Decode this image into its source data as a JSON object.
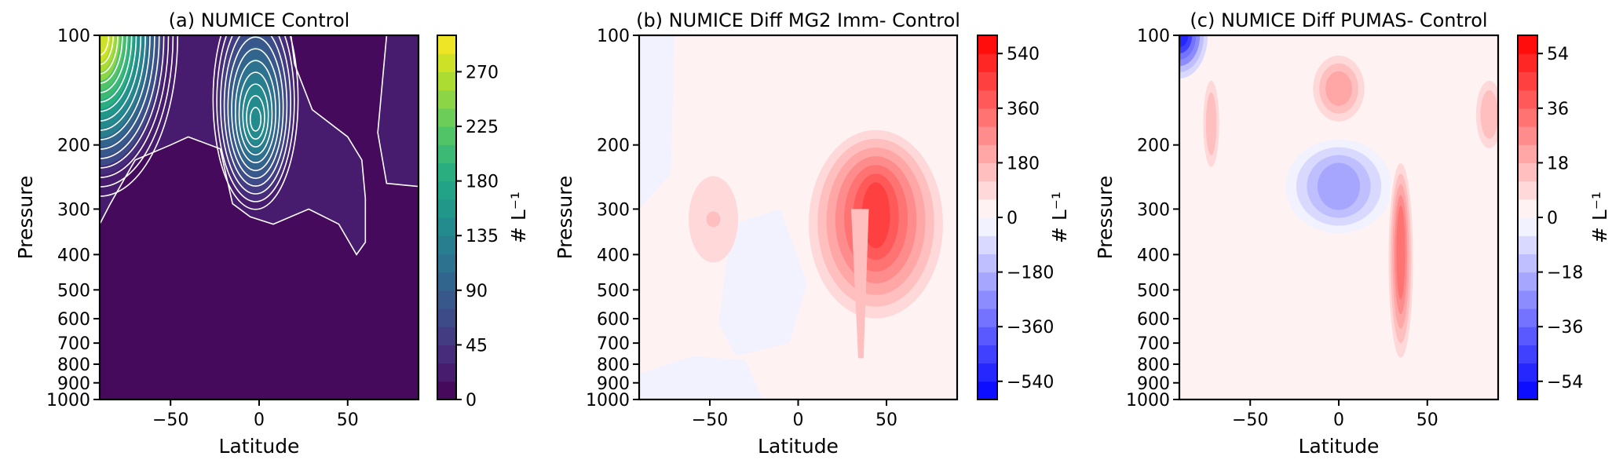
{
  "chart_data": [
    {
      "type": "heatmap",
      "title": "(a) NUMICE Control",
      "xlabel": "Latitude",
      "ylabel": "Pressure",
      "x_ticks": [
        "−50",
        "0",
        "50"
      ],
      "x_tick_values": [
        -50,
        0,
        50
      ],
      "xlim": [
        -90,
        90
      ],
      "y_ticks": [
        "100",
        "200",
        "300",
        "400",
        "500",
        "600",
        "700",
        "800",
        "900",
        "1000"
      ],
      "y_tick_values": [
        100,
        200,
        300,
        400,
        500,
        600,
        700,
        800,
        900,
        1000
      ],
      "ylim": [
        1000,
        100
      ],
      "y_scale": "log",
      "colorbar": {
        "label": "# L⁻¹",
        "ticks": [
          "0",
          "45",
          "90",
          "135",
          "180",
          "225",
          "270"
        ],
        "tick_values": [
          0,
          45,
          90,
          135,
          180,
          225,
          270
        ],
        "range": [
          0,
          300
        ],
        "colormap": "viridis",
        "levels": 20
      },
      "features": [
        {
          "lat": -90,
          "p": 100,
          "value": 300
        },
        {
          "lat": 0,
          "p": 140,
          "value": 150
        },
        {
          "lat": 90,
          "p": 190,
          "value": 25
        }
      ]
    },
    {
      "type": "heatmap",
      "title": "(b) NUMICE Diff MG2 Imm- Control",
      "xlabel": "Latitude",
      "ylabel": "Pressure",
      "x_ticks": [
        "−50",
        "0",
        "50"
      ],
      "x_tick_values": [
        -50,
        0,
        50
      ],
      "xlim": [
        -90,
        90
      ],
      "y_ticks": [
        "100",
        "200",
        "300",
        "400",
        "500",
        "600",
        "700",
        "800",
        "900",
        "1000"
      ],
      "y_tick_values": [
        100,
        200,
        300,
        400,
        500,
        600,
        700,
        800,
        900,
        1000
      ],
      "ylim": [
        1000,
        100
      ],
      "y_scale": "log",
      "colorbar": {
        "label": "# L⁻¹",
        "ticks": [
          "−540",
          "−360",
          "−180",
          "0",
          "180",
          "360",
          "540"
        ],
        "tick_values": [
          -540,
          -360,
          -180,
          0,
          180,
          360,
          540
        ],
        "range": [
          -600,
          600
        ],
        "colormap": "bwr",
        "levels": 20
      },
      "features": [
        {
          "lat": 42,
          "p": 330,
          "value": 300
        },
        {
          "lat": -48,
          "p": 320,
          "value": 80
        },
        {
          "lat": -80,
          "p": 130,
          "value": -30
        }
      ]
    },
    {
      "type": "heatmap",
      "title": "(c) NUMICE Diff PUMAS- Control",
      "xlabel": "Latitude",
      "ylabel": "Pressure",
      "x_ticks": [
        "−50",
        "0",
        "50"
      ],
      "x_tick_values": [
        -50,
        0,
        50
      ],
      "xlim": [
        -90,
        90
      ],
      "y_ticks": [
        "100",
        "200",
        "300",
        "400",
        "500",
        "600",
        "700",
        "800",
        "900",
        "1000"
      ],
      "y_tick_values": [
        100,
        200,
        300,
        400,
        500,
        600,
        700,
        800,
        900,
        1000
      ],
      "ylim": [
        1000,
        100
      ],
      "y_scale": "log",
      "colorbar": {
        "label": "# L⁻¹",
        "ticks": [
          "−54",
          "−36",
          "−18",
          "0",
          "18",
          "36",
          "54"
        ],
        "tick_values": [
          -54,
          -36,
          -18,
          0,
          18,
          36,
          54
        ],
        "range": [
          -60,
          60
        ],
        "colormap": "bwr",
        "levels": 20
      },
      "features": [
        {
          "lat": -88,
          "p": 100,
          "value": -60
        },
        {
          "lat": 35,
          "p": 430,
          "value": 35
        },
        {
          "lat": 0,
          "p": 260,
          "value": -20
        },
        {
          "lat": 0,
          "p": 140,
          "value": 18
        }
      ]
    }
  ]
}
